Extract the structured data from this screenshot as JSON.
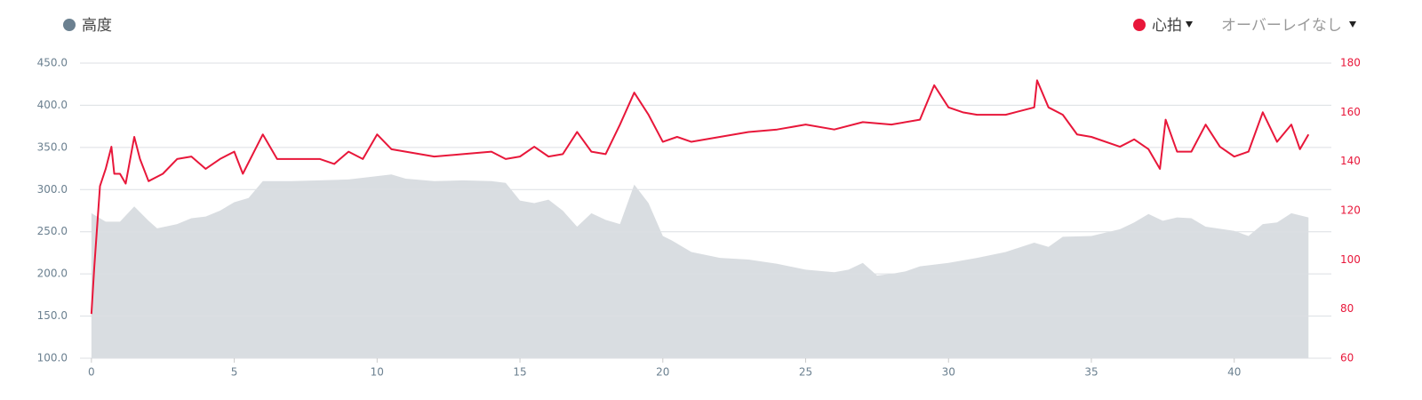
{
  "chart_data": {
    "type": "line",
    "overlay_menu": "オーバーレイなし",
    "xlim": [
      -0.4,
      43.4
    ],
    "xticks": [
      0,
      5,
      10,
      15,
      20,
      25,
      30,
      35,
      40
    ],
    "ylim": [
      100,
      450
    ],
    "yticks": [
      {
        "value": 100,
        "label": "100.0"
      },
      {
        "value": 150,
        "label": "150.0"
      },
      {
        "value": 200,
        "label": "200.0"
      },
      {
        "value": 250,
        "label": "250.0"
      },
      {
        "value": 300,
        "label": "300.0"
      },
      {
        "value": 350,
        "label": "350.0"
      },
      {
        "value": 400,
        "label": "400.0"
      },
      {
        "value": 450,
        "label": "450.0"
      }
    ],
    "y2lim": [
      60,
      180
    ],
    "y2ticks": [
      60,
      80,
      100,
      120,
      140,
      160,
      180
    ],
    "grid": true,
    "series": [
      {
        "name": "高度",
        "type": "area",
        "color": "#d9dde1",
        "legend_color": "#6b8090",
        "x": [
          0,
          0.5,
          1,
          1.5,
          2,
          2.3,
          3,
          3.5,
          4,
          4.5,
          5,
          5.5,
          6,
          6.5,
          7,
          8,
          9,
          10,
          10.5,
          11,
          12,
          13,
          14,
          14.5,
          15,
          15.5,
          16,
          16.5,
          17,
          17.5,
          18,
          18.5,
          19,
          19.5,
          20,
          20.3,
          21,
          22,
          23,
          24,
          25,
          26,
          26.5,
          27,
          27.5,
          28,
          28.5,
          29,
          30,
          31,
          32,
          33,
          33.5,
          34,
          35,
          36,
          36.5,
          37,
          37.5,
          38,
          38.5,
          39,
          40,
          40.5,
          41,
          41.5,
          42,
          42.6
        ],
        "values": [
          272,
          262,
          262,
          280,
          263,
          254,
          259,
          266,
          268,
          275,
          285,
          290,
          310,
          310,
          310,
          311,
          312,
          316,
          318,
          313,
          310,
          311,
          310,
          308,
          287,
          284,
          288,
          275,
          256,
          272,
          264,
          259,
          306,
          284,
          245,
          240,
          226,
          219,
          217,
          212,
          205,
          202,
          205,
          213,
          198,
          200,
          203,
          209,
          213,
          219,
          226,
          237,
          232,
          244,
          245,
          253,
          261,
          271,
          263,
          267,
          266,
          256,
          251,
          245,
          259,
          261,
          272,
          267
        ]
      },
      {
        "name": "心拍",
        "type": "line",
        "axis": "y2",
        "color": "#e8173a",
        "x": [
          0,
          0.1,
          0.3,
          0.5,
          0.7,
          0.8,
          1,
          1.2,
          1.5,
          1.7,
          2,
          2.5,
          3,
          3.5,
          4,
          4.5,
          5,
          5.3,
          6,
          6.5,
          7,
          8,
          8.5,
          9,
          9.5,
          10,
          10.5,
          11,
          12,
          13,
          14,
          14.5,
          15,
          15.5,
          16,
          16.5,
          17,
          17.5,
          18,
          18.5,
          19,
          19.5,
          20,
          20.5,
          21,
          22,
          23,
          24,
          25,
          26,
          27,
          28,
          29,
          29.5,
          30,
          30.5,
          31,
          32,
          33,
          33.1,
          33.5,
          34,
          34.5,
          35,
          36,
          36.5,
          37,
          37.4,
          37.6,
          38,
          38.5,
          39,
          39.5,
          40,
          40.5,
          41,
          41.5,
          42,
          42.3,
          42.6
        ],
        "values": [
          78,
          97,
          130,
          137,
          146,
          135,
          135,
          131,
          150,
          141,
          132,
          135,
          141,
          142,
          137,
          141,
          144,
          135,
          151,
          141,
          141,
          141,
          139,
          144,
          141,
          151,
          145,
          144,
          142,
          143,
          144,
          141,
          142,
          146,
          142,
          143,
          152,
          144,
          143,
          155,
          168,
          159,
          148,
          150,
          148,
          150,
          152,
          153,
          155,
          153,
          156,
          155,
          157,
          171,
          162,
          160,
          159,
          159,
          162,
          173,
          162,
          159,
          151,
          150,
          146,
          149,
          145,
          137,
          157,
          144,
          144,
          155,
          146,
          142,
          144,
          160,
          148,
          155,
          145,
          151
        ]
      }
    ]
  }
}
